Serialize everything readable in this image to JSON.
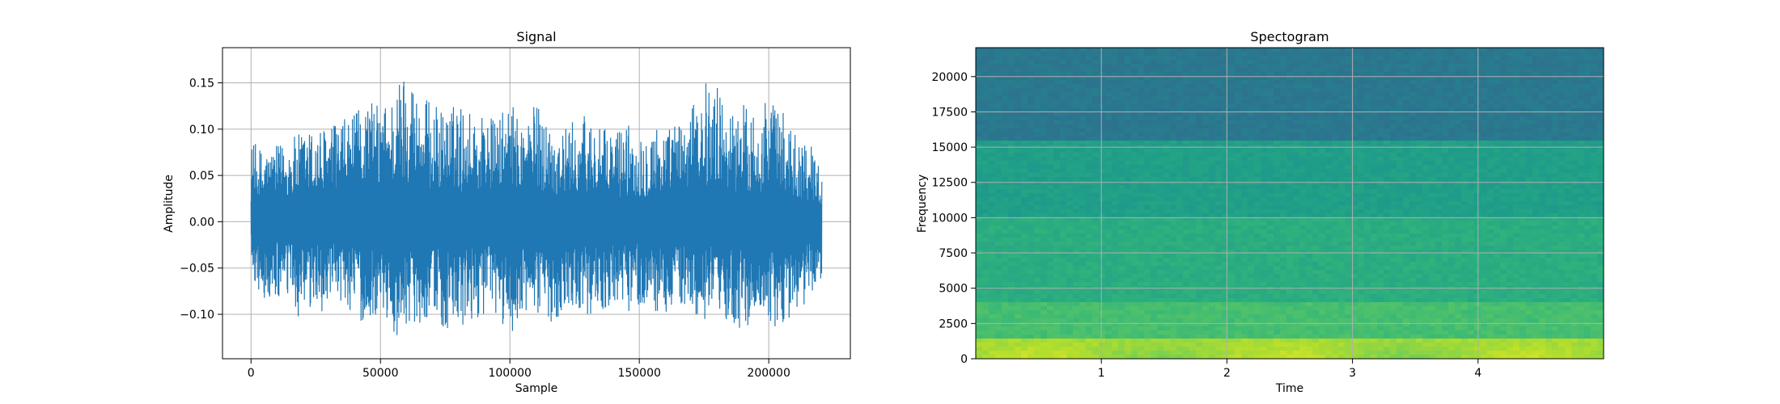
{
  "chart_data": [
    {
      "type": "line",
      "title": "Signal",
      "xlabel": "Sample",
      "ylabel": "Amplitude",
      "xlim": [
        -11025,
        231525
      ],
      "ylim": [
        -0.148,
        0.188
      ],
      "xticks": [
        0,
        50000,
        100000,
        150000,
        200000
      ],
      "xtick_labels": [
        "0",
        "50000",
        "100000",
        "150000",
        "200000"
      ],
      "yticks": [
        -0.1,
        -0.05,
        0.0,
        0.05,
        0.1,
        0.15
      ],
      "ytick_labels": [
        "−0.10",
        "−0.05",
        "0.00",
        "0.05",
        "0.10",
        "0.15"
      ],
      "grid": true,
      "series": [
        {
          "color": "#1f77b4",
          "x": [
            0,
            5000,
            10000,
            15000,
            20000,
            25000,
            30000,
            35000,
            40000,
            45000,
            50000,
            55000,
            60000,
            65000,
            70000,
            75000,
            80000,
            85000,
            90000,
            95000,
            100000,
            105000,
            110000,
            115000,
            120000,
            125000,
            130000,
            135000,
            140000,
            145000,
            150000,
            155000,
            160000,
            165000,
            170000,
            175000,
            180000,
            185000,
            190000,
            195000,
            200000,
            205000,
            210000,
            215000,
            220500
          ],
          "max": [
            0.088,
            0.078,
            0.082,
            0.09,
            0.098,
            0.102,
            0.105,
            0.11,
            0.116,
            0.135,
            0.125,
            0.14,
            0.176,
            0.138,
            0.13,
            0.12,
            0.13,
            0.12,
            0.12,
            0.11,
            0.13,
            0.11,
            0.13,
            0.11,
            0.1,
            0.11,
            0.12,
            0.1,
            0.1,
            0.11,
            0.095,
            0.11,
            0.1,
            0.11,
            0.12,
            0.154,
            0.15,
            0.12,
            0.13,
            0.12,
            0.14,
            0.12,
            0.1,
            0.09,
            0.06
          ],
          "min": [
            -0.057,
            -0.09,
            -0.088,
            -0.085,
            -0.118,
            -0.095,
            -0.1,
            -0.09,
            -0.1,
            -0.12,
            -0.09,
            -0.13,
            -0.11,
            -0.11,
            -0.1,
            -0.12,
            -0.13,
            -0.11,
            -0.1,
            -0.11,
            -0.12,
            -0.11,
            -0.1,
            -0.11,
            -0.1,
            -0.09,
            -0.1,
            -0.1,
            -0.09,
            -0.1,
            -0.09,
            -0.1,
            -0.1,
            -0.09,
            -0.1,
            -0.11,
            -0.1,
            -0.11,
            -0.12,
            -0.1,
            -0.11,
            -0.12,
            -0.1,
            -0.09,
            -0.06
          ]
        }
      ]
    },
    {
      "type": "heatmap",
      "title": "Spectogram",
      "xlabel": "Time",
      "ylabel": "Frequency",
      "xlim": [
        0,
        5.0
      ],
      "ylim": [
        0,
        22050
      ],
      "xticks": [
        1,
        2,
        3,
        4
      ],
      "xtick_labels": [
        "1",
        "2",
        "3",
        "4"
      ],
      "yticks": [
        0,
        2500,
        5000,
        7500,
        10000,
        12500,
        15000,
        17500,
        20000
      ],
      "ytick_labels": [
        "0",
        "2500",
        "5000",
        "7500",
        "10000",
        "12500",
        "15000",
        "17500",
        "20000"
      ],
      "grid": true,
      "colormap": "viridis",
      "frequency_bands": [
        {
          "from": 0,
          "to": 1500,
          "level": 0.86
        },
        {
          "from": 1500,
          "to": 4000,
          "level": 0.7
        },
        {
          "from": 4000,
          "to": 10000,
          "level": 0.62
        },
        {
          "from": 10000,
          "to": 15500,
          "level": 0.56
        },
        {
          "from": 15500,
          "to": 22050,
          "level": 0.4
        }
      ]
    }
  ]
}
